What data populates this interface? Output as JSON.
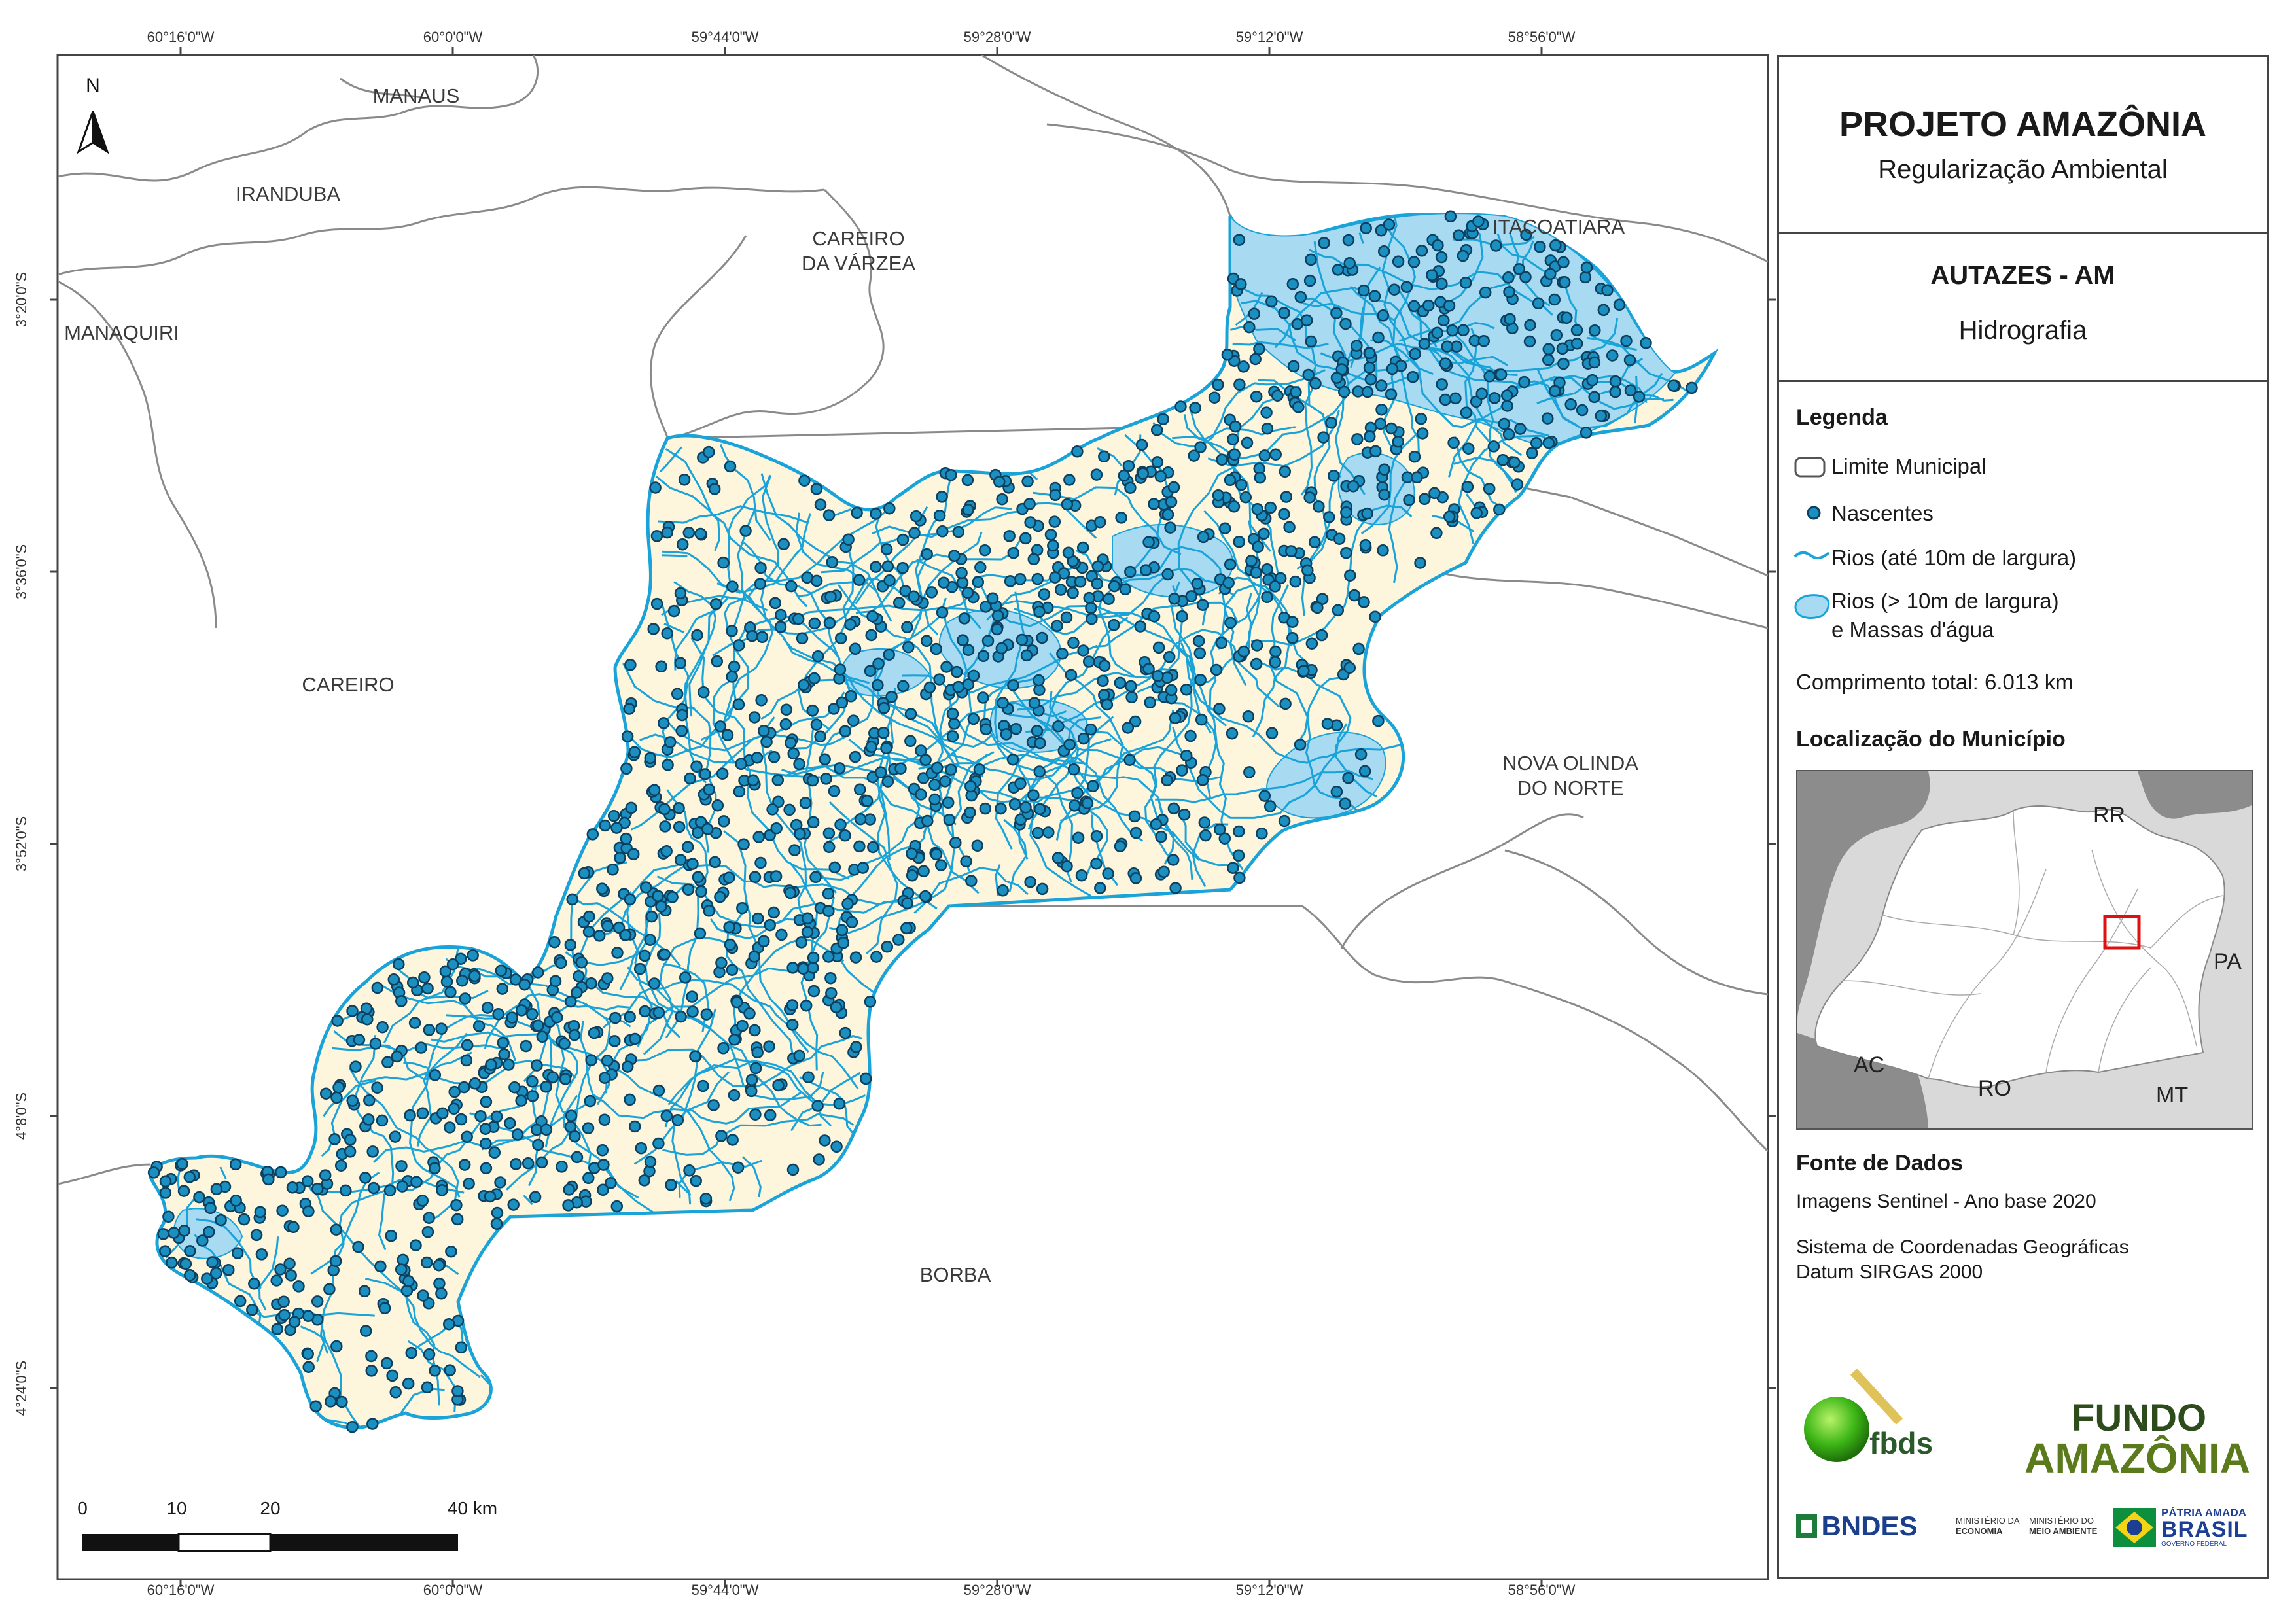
{
  "project": {
    "title": "PROJETO AMAZÔNIA",
    "subtitle": "Regularização Ambiental"
  },
  "map": {
    "title": "AUTAZES - AM",
    "subtitle": "Hidrografia"
  },
  "legend": {
    "heading": "Legenda",
    "items": [
      {
        "symbol": "municipal-boundary",
        "label": "Limite Municipal"
      },
      {
        "symbol": "spring-dot",
        "label": "Nascentes",
        "color": "#1a8fc0"
      },
      {
        "symbol": "small-river-line",
        "label": "Rios (até 10m de largura)",
        "color": "#1aa3d9"
      },
      {
        "symbol": "water-body-fill",
        "label_line1": "Rios (> 10m de largura)",
        "label_line2": "e Massas d'água",
        "color": "#a8daf2"
      }
    ],
    "total_length": "Comprimento total:  6.013 km"
  },
  "location": {
    "heading": "Localização do Município",
    "labels": [
      "RR",
      "PA",
      "AC",
      "RO",
      "MT"
    ]
  },
  "sources": {
    "heading": "Fonte de Dados",
    "line1": "Imagens Sentinel - Ano base 2020",
    "line2": "Sistema de Coordenadas Geográficas",
    "line3": "Datum SIRGAS 2000"
  },
  "coordinates": {
    "longitudes": [
      "60°16'0\"W",
      "60°0'0\"W",
      "59°44'0\"W",
      "59°28'0\"W",
      "59°12'0\"W",
      "58°56'0\"W"
    ],
    "latitudes": [
      "3°20'0\"S",
      "3°36'0\"S",
      "3°52'0\"S",
      "4°8'0\"S",
      "4°24'0\"S"
    ]
  },
  "places": {
    "manaus": "MANAUS",
    "iranduba": "IRANDUBA",
    "careiro_varzea_1": "CAREIRO",
    "careiro_varzea_2": "DA VÁRZEA",
    "itacoatiara": "ITACOATIARA",
    "manaquiri": "MANAQUIRI",
    "careiro": "CAREIRO",
    "nova_olinda_1": "NOVA OLINDA",
    "nova_olinda_2": "DO NORTE",
    "borba": "BORBA"
  },
  "north_arrow": "N",
  "scale_bar": {
    "labels": [
      "0",
      "10",
      "20",
      "40 km"
    ]
  },
  "logos": {
    "fbds": "fbds",
    "fundo_1": "FUNDO",
    "fundo_2": "AMAZÔNIA",
    "bndes": "BNDES",
    "min_economia_1": "MINISTÉRIO DA",
    "min_economia_2": "ECONOMIA",
    "min_ambiente_1": "MINISTÉRIO DO",
    "min_ambiente_2": "MEIO AMBIENTE",
    "patria_1": "PÁTRIA AMADA",
    "patria_2": "BRASIL",
    "patria_3": "GOVERNO FEDERAL"
  },
  "colors": {
    "municipality_fill": "#fdf5dc",
    "river": "#1aa3d9",
    "water_body": "#a8daf2",
    "spring": "#1a8fc0",
    "spring_stroke": "#0d3f5e",
    "boundary": "#8a8a8a",
    "inset_state": "#ffffff",
    "inset_neighbor": "#d9d9d9",
    "inset_dark": "#8c8c8c",
    "inset_highlight": "#e01010"
  }
}
